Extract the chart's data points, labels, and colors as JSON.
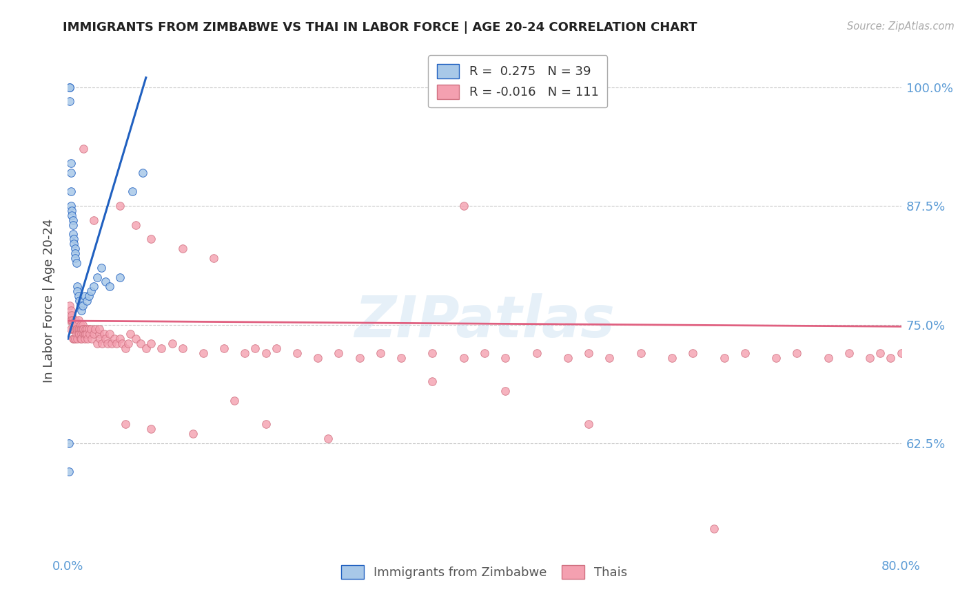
{
  "title": "IMMIGRANTS FROM ZIMBABWE VS THAI IN LABOR FORCE | AGE 20-24 CORRELATION CHART",
  "source": "Source: ZipAtlas.com",
  "ylabel": "In Labor Force | Age 20-24",
  "ytick_labels": [
    "62.5%",
    "75.0%",
    "87.5%",
    "100.0%"
  ],
  "ytick_values": [
    0.625,
    0.75,
    0.875,
    1.0
  ],
  "xmin": 0.0,
  "xmax": 0.8,
  "ymin": 0.51,
  "ymax": 1.04,
  "color_zimbabwe": "#a8c8e8",
  "color_thai": "#f4a0b0",
  "color_line_zimbabwe": "#2060c0",
  "color_line_thai": "#e06080",
  "watermark_text": "ZIPatlas",
  "background_color": "#ffffff",
  "grid_color": "#c8c8c8",
  "axis_label_color": "#5b9bd5",
  "title_color": "#222222",
  "marker_size": 70,
  "zim_x": [
    0.001,
    0.001,
    0.002,
    0.002,
    0.002,
    0.003,
    0.003,
    0.003,
    0.003,
    0.004,
    0.004,
    0.005,
    0.005,
    0.005,
    0.006,
    0.006,
    0.007,
    0.007,
    0.007,
    0.008,
    0.009,
    0.009,
    0.01,
    0.011,
    0.012,
    0.013,
    0.014,
    0.016,
    0.018,
    0.02,
    0.022,
    0.025,
    0.028,
    0.032,
    0.036,
    0.04,
    0.05,
    0.062,
    0.072
  ],
  "zim_y": [
    0.625,
    0.595,
    1.0,
    1.0,
    0.985,
    0.92,
    0.91,
    0.89,
    0.875,
    0.87,
    0.865,
    0.86,
    0.855,
    0.845,
    0.84,
    0.835,
    0.83,
    0.825,
    0.82,
    0.815,
    0.79,
    0.785,
    0.78,
    0.775,
    0.77,
    0.765,
    0.77,
    0.78,
    0.775,
    0.78,
    0.785,
    0.79,
    0.8,
    0.81,
    0.795,
    0.79,
    0.8,
    0.89,
    0.91
  ],
  "thai_x": [
    0.001,
    0.002,
    0.002,
    0.003,
    0.003,
    0.003,
    0.004,
    0.004,
    0.005,
    0.005,
    0.005,
    0.006,
    0.006,
    0.006,
    0.007,
    0.007,
    0.007,
    0.008,
    0.008,
    0.008,
    0.009,
    0.009,
    0.01,
    0.01,
    0.01,
    0.011,
    0.011,
    0.012,
    0.012,
    0.012,
    0.013,
    0.013,
    0.013,
    0.014,
    0.014,
    0.015,
    0.015,
    0.016,
    0.016,
    0.017,
    0.017,
    0.018,
    0.018,
    0.019,
    0.02,
    0.021,
    0.022,
    0.023,
    0.025,
    0.026,
    0.028,
    0.03,
    0.03,
    0.031,
    0.033,
    0.035,
    0.036,
    0.038,
    0.04,
    0.042,
    0.045,
    0.047,
    0.05,
    0.052,
    0.055,
    0.058,
    0.06,
    0.065,
    0.07,
    0.075,
    0.08,
    0.09,
    0.1,
    0.11,
    0.13,
    0.15,
    0.17,
    0.18,
    0.19,
    0.2,
    0.22,
    0.24,
    0.26,
    0.28,
    0.3,
    0.32,
    0.35,
    0.38,
    0.4,
    0.42,
    0.45,
    0.48,
    0.5,
    0.52,
    0.55,
    0.58,
    0.6,
    0.63,
    0.65,
    0.68,
    0.7,
    0.73,
    0.75,
    0.77,
    0.78,
    0.79,
    0.8
  ],
  "thai_y": [
    0.755,
    0.77,
    0.76,
    0.765,
    0.755,
    0.745,
    0.76,
    0.755,
    0.755,
    0.745,
    0.735,
    0.75,
    0.745,
    0.735,
    0.755,
    0.745,
    0.735,
    0.75,
    0.745,
    0.74,
    0.745,
    0.735,
    0.755,
    0.745,
    0.74,
    0.745,
    0.74,
    0.75,
    0.745,
    0.735,
    0.745,
    0.74,
    0.735,
    0.75,
    0.745,
    0.74,
    0.745,
    0.74,
    0.735,
    0.745,
    0.74,
    0.745,
    0.74,
    0.735,
    0.745,
    0.74,
    0.745,
    0.735,
    0.74,
    0.745,
    0.73,
    0.74,
    0.745,
    0.735,
    0.73,
    0.74,
    0.735,
    0.73,
    0.74,
    0.73,
    0.735,
    0.73,
    0.735,
    0.73,
    0.725,
    0.73,
    0.74,
    0.735,
    0.73,
    0.725,
    0.73,
    0.725,
    0.73,
    0.725,
    0.72,
    0.725,
    0.72,
    0.725,
    0.72,
    0.725,
    0.72,
    0.715,
    0.72,
    0.715,
    0.72,
    0.715,
    0.72,
    0.715,
    0.72,
    0.715,
    0.72,
    0.715,
    0.72,
    0.715,
    0.72,
    0.715,
    0.72,
    0.715,
    0.72,
    0.715,
    0.72,
    0.715,
    0.72,
    0.715,
    0.72,
    0.715,
    0.72
  ],
  "thai_outliers_x": [
    0.015,
    0.025,
    0.05,
    0.065,
    0.08,
    0.11,
    0.14,
    0.38,
    0.055,
    0.08,
    0.12,
    0.5,
    0.62,
    0.16,
    0.19,
    0.25,
    0.35,
    0.42
  ],
  "thai_outliers_y": [
    0.935,
    0.86,
    0.875,
    0.855,
    0.84,
    0.83,
    0.82,
    0.875,
    0.645,
    0.64,
    0.635,
    0.645,
    0.535,
    0.67,
    0.645,
    0.63,
    0.69,
    0.68
  ],
  "zim_tline_x": [
    0.0,
    0.075
  ],
  "zim_tline_y": [
    0.735,
    1.01
  ],
  "thai_tline_x": [
    0.0,
    0.8
  ],
  "thai_tline_y": [
    0.754,
    0.748
  ]
}
